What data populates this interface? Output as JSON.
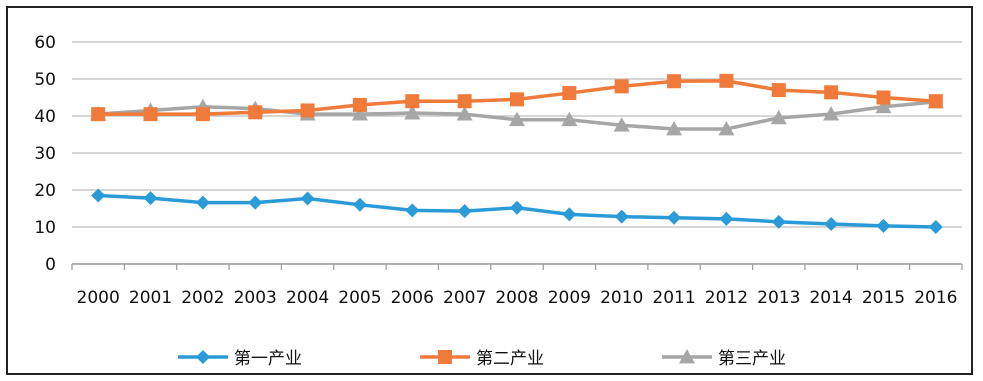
{
  "chart_data": {
    "type": "line",
    "x": [
      "2000",
      "2001",
      "2002",
      "2003",
      "2004",
      "2005",
      "2006",
      "2007",
      "2008",
      "2009",
      "2010",
      "2011",
      "2012",
      "2013",
      "2014",
      "2015",
      "2016"
    ],
    "ylim": [
      0,
      60
    ],
    "yticks": [
      0,
      10,
      20,
      30,
      40,
      50,
      60
    ],
    "grid": true,
    "legend": "bottom",
    "series": [
      {
        "name": "第一产业",
        "color": "#2b9bd8",
        "marker": "diamond",
        "values": [
          18.5,
          17.8,
          16.6,
          16.6,
          17.7,
          16.0,
          14.5,
          14.3,
          15.2,
          13.4,
          12.8,
          12.5,
          12.2,
          11.4,
          10.8,
          10.3,
          10.0
        ]
      },
      {
        "name": "第二产业",
        "color": "#f07a3a",
        "marker": "square",
        "values": [
          40.5,
          40.5,
          40.5,
          41.0,
          41.5,
          43.0,
          44.0,
          44.0,
          44.5,
          46.2,
          48.0,
          49.4,
          49.5,
          47.0,
          46.4,
          45.0,
          44.0
        ]
      },
      {
        "name": "第三产业",
        "color": "#a6a6a6",
        "marker": "triangle",
        "values": [
          40.5,
          41.5,
          42.5,
          42.0,
          40.5,
          40.5,
          40.8,
          40.5,
          39.0,
          39.0,
          37.5,
          36.5,
          36.5,
          39.5,
          40.5,
          42.5,
          43.8
        ]
      }
    ]
  }
}
